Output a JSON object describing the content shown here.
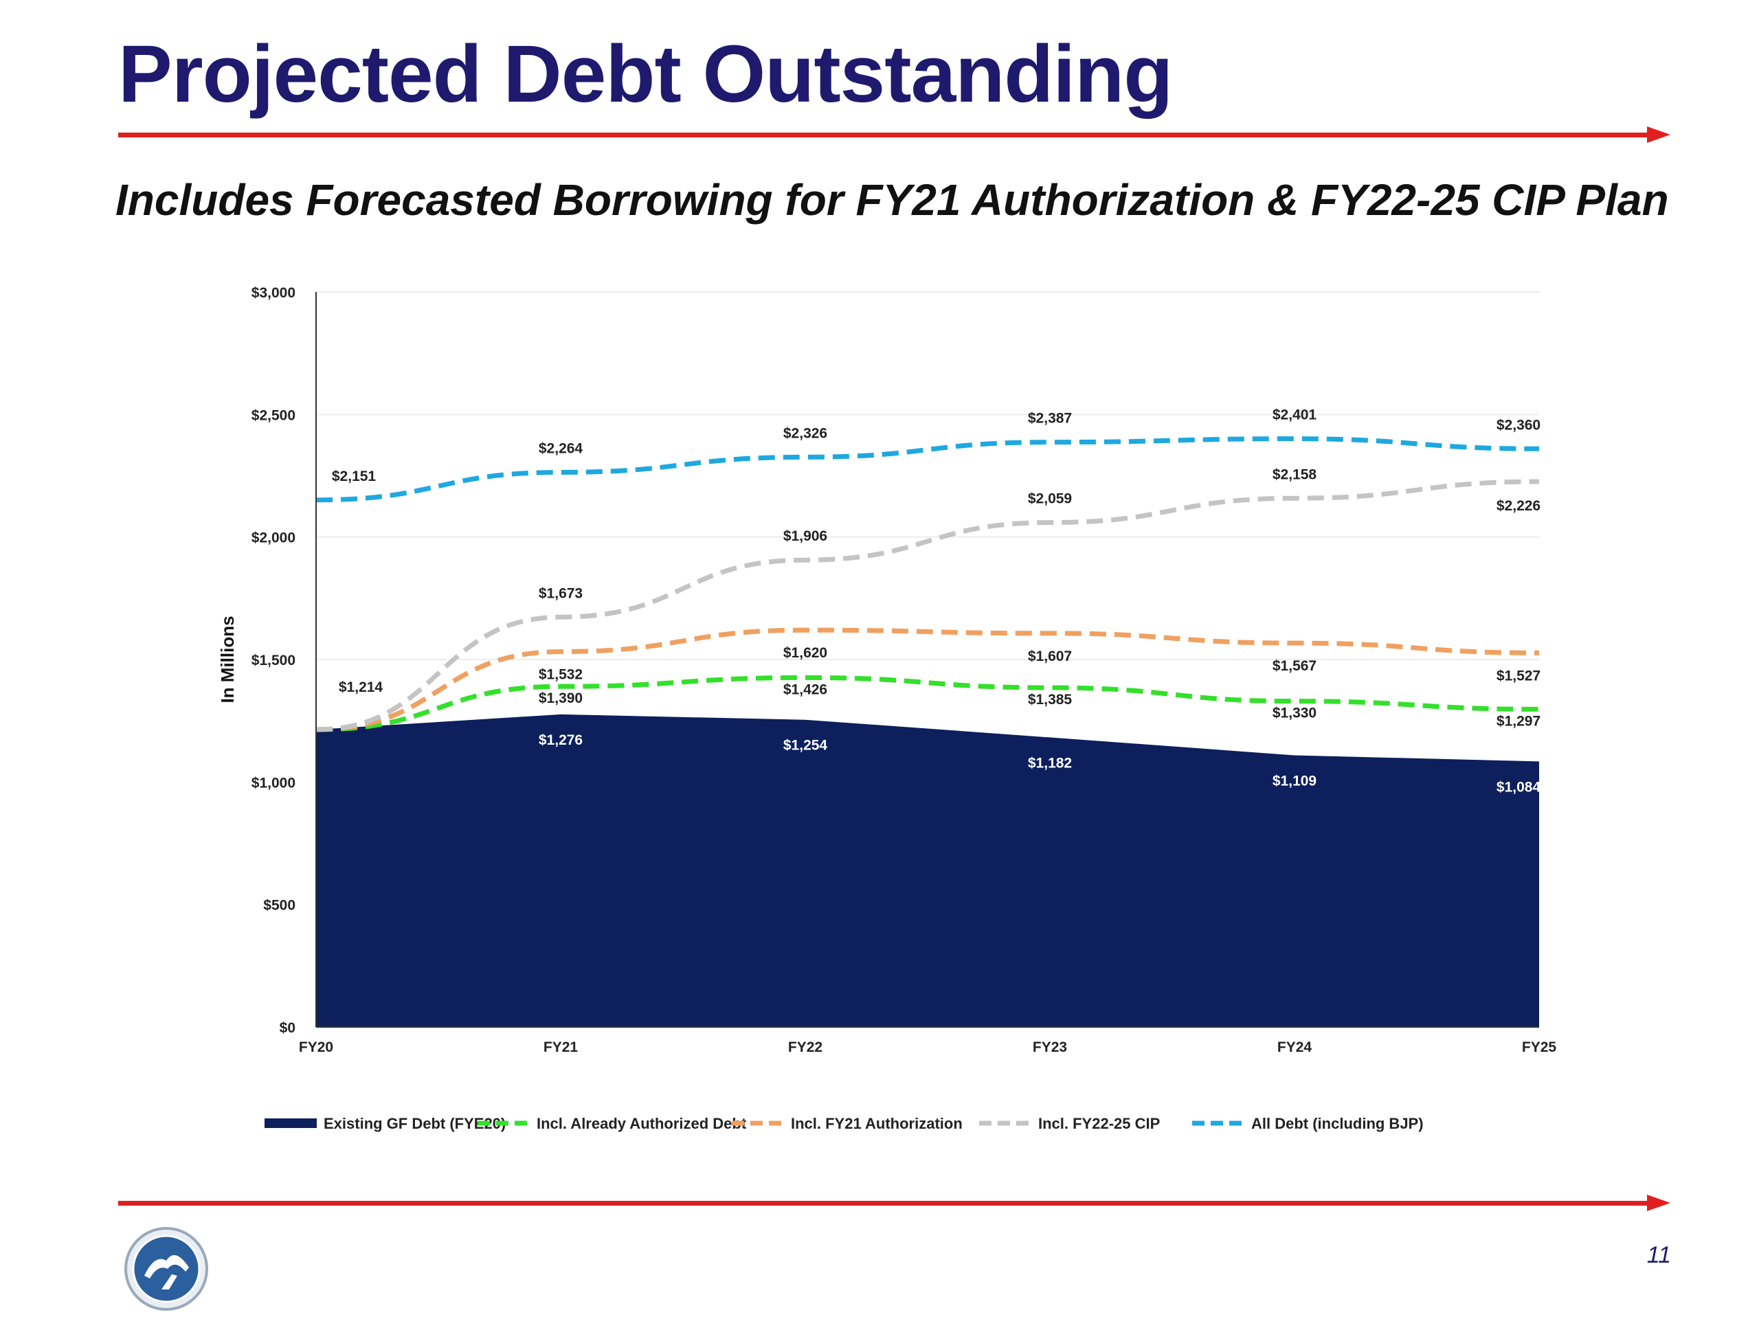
{
  "slide": {
    "title": "Projected Debt Outstanding",
    "subtitle": "Includes Forecasted Borrowing for FY21 Authorization & FY22-25 CIP Plan",
    "page_number": "11",
    "accent_color": "#e02020",
    "title_color": "#1f1a6e"
  },
  "chart_data": {
    "type": "area",
    "ylabel": "In Millions",
    "ylim": [
      0,
      3000
    ],
    "yticks": [
      "$0",
      "$500",
      "$1,000",
      "$1,500",
      "$2,000",
      "$2,500",
      "$3,000"
    ],
    "categories": [
      "FY20",
      "FY21",
      "FY22",
      "FY23",
      "FY24",
      "FY25"
    ],
    "legend_position": "bottom",
    "series": [
      {
        "name": "Existing GF Debt (FYE20)",
        "kind": "area",
        "color": "#0d1f5c",
        "values": [
          1214,
          1276,
          1254,
          1182,
          1109,
          1084
        ],
        "labels": [
          "",
          "$1,276",
          "$1,254",
          "$1,182",
          "$1,109",
          "$1,084"
        ]
      },
      {
        "name": "Incl. Already Authorized Debt",
        "kind": "dashed",
        "color": "#33e02a",
        "values": [
          1214,
          1390,
          1426,
          1385,
          1330,
          1297
        ],
        "labels": [
          "",
          "$1,390",
          "$1,426",
          "$1,385",
          "$1,330",
          "$1,297"
        ]
      },
      {
        "name": "Incl. FY21 Authorization",
        "kind": "dashed",
        "color": "#f0a060",
        "values": [
          1214,
          1532,
          1620,
          1607,
          1567,
          1527
        ],
        "labels": [
          "",
          "$1,532",
          "$1,620",
          "$1,607",
          "$1,567",
          "$1,527"
        ]
      },
      {
        "name": "Incl. FY22-25 CIP",
        "kind": "dashed",
        "color": "#c4c4c4",
        "values": [
          1214,
          1673,
          1906,
          2059,
          2158,
          2226
        ],
        "labels": [
          "$1,214",
          "$1,673",
          "$1,906",
          "$2,059",
          "$2,158",
          "$2,226"
        ]
      },
      {
        "name": "All Debt (including BJP)",
        "kind": "dashed",
        "color": "#1ea8e0",
        "values": [
          2151,
          2264,
          2326,
          2387,
          2401,
          2360
        ],
        "labels": [
          "$2,151",
          "$2,264",
          "$2,326",
          "$2,387",
          "$2,401",
          "$2,360"
        ]
      }
    ]
  }
}
